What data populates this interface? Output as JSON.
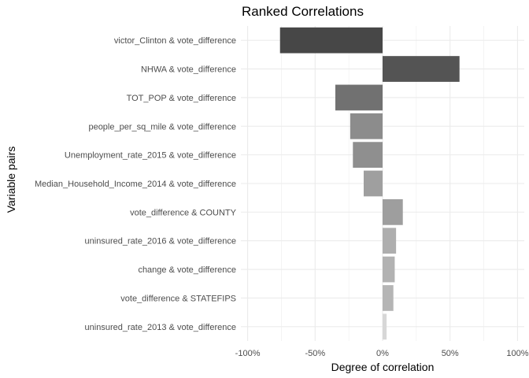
{
  "chart_data": {
    "type": "bar",
    "orientation": "horizontal",
    "title": "Ranked Correlations",
    "xlabel": "Degree of correlation",
    "ylabel": "Variable pairs",
    "xlim": [
      -1.05,
      1.05
    ],
    "x_ticks": [
      -1,
      -0.5,
      0,
      0.5,
      1
    ],
    "x_tick_labels": [
      "-100%",
      "-50%",
      "0%",
      "50%",
      "100%"
    ],
    "grid": true,
    "legend": "none",
    "categories": [
      "victor_Clinton & vote_difference",
      "NHWA & vote_difference",
      "TOT_POP & vote_difference",
      "people_per_sq_mile & vote_difference",
      "Unemployment_rate_2015 & vote_difference",
      "Median_Household_Income_2014 & vote_difference",
      "vote_difference & COUNTY",
      "uninsured_rate_2016 & vote_difference",
      "change & vote_difference",
      "vote_difference & STATEFIPS",
      "uninsured_rate_2013 & vote_difference"
    ],
    "values": [
      -0.76,
      0.57,
      -0.35,
      -0.24,
      -0.22,
      -0.14,
      0.15,
      0.1,
      0.09,
      0.08,
      0.03
    ],
    "colors": [
      "#474747",
      "#545454",
      "#717171",
      "#8c8c8c",
      "#8f8f8f",
      "#9f9f9f",
      "#9e9e9e",
      "#aeaeae",
      "#b2b2b2",
      "#b5b5b5",
      "#d7d7d7"
    ]
  }
}
